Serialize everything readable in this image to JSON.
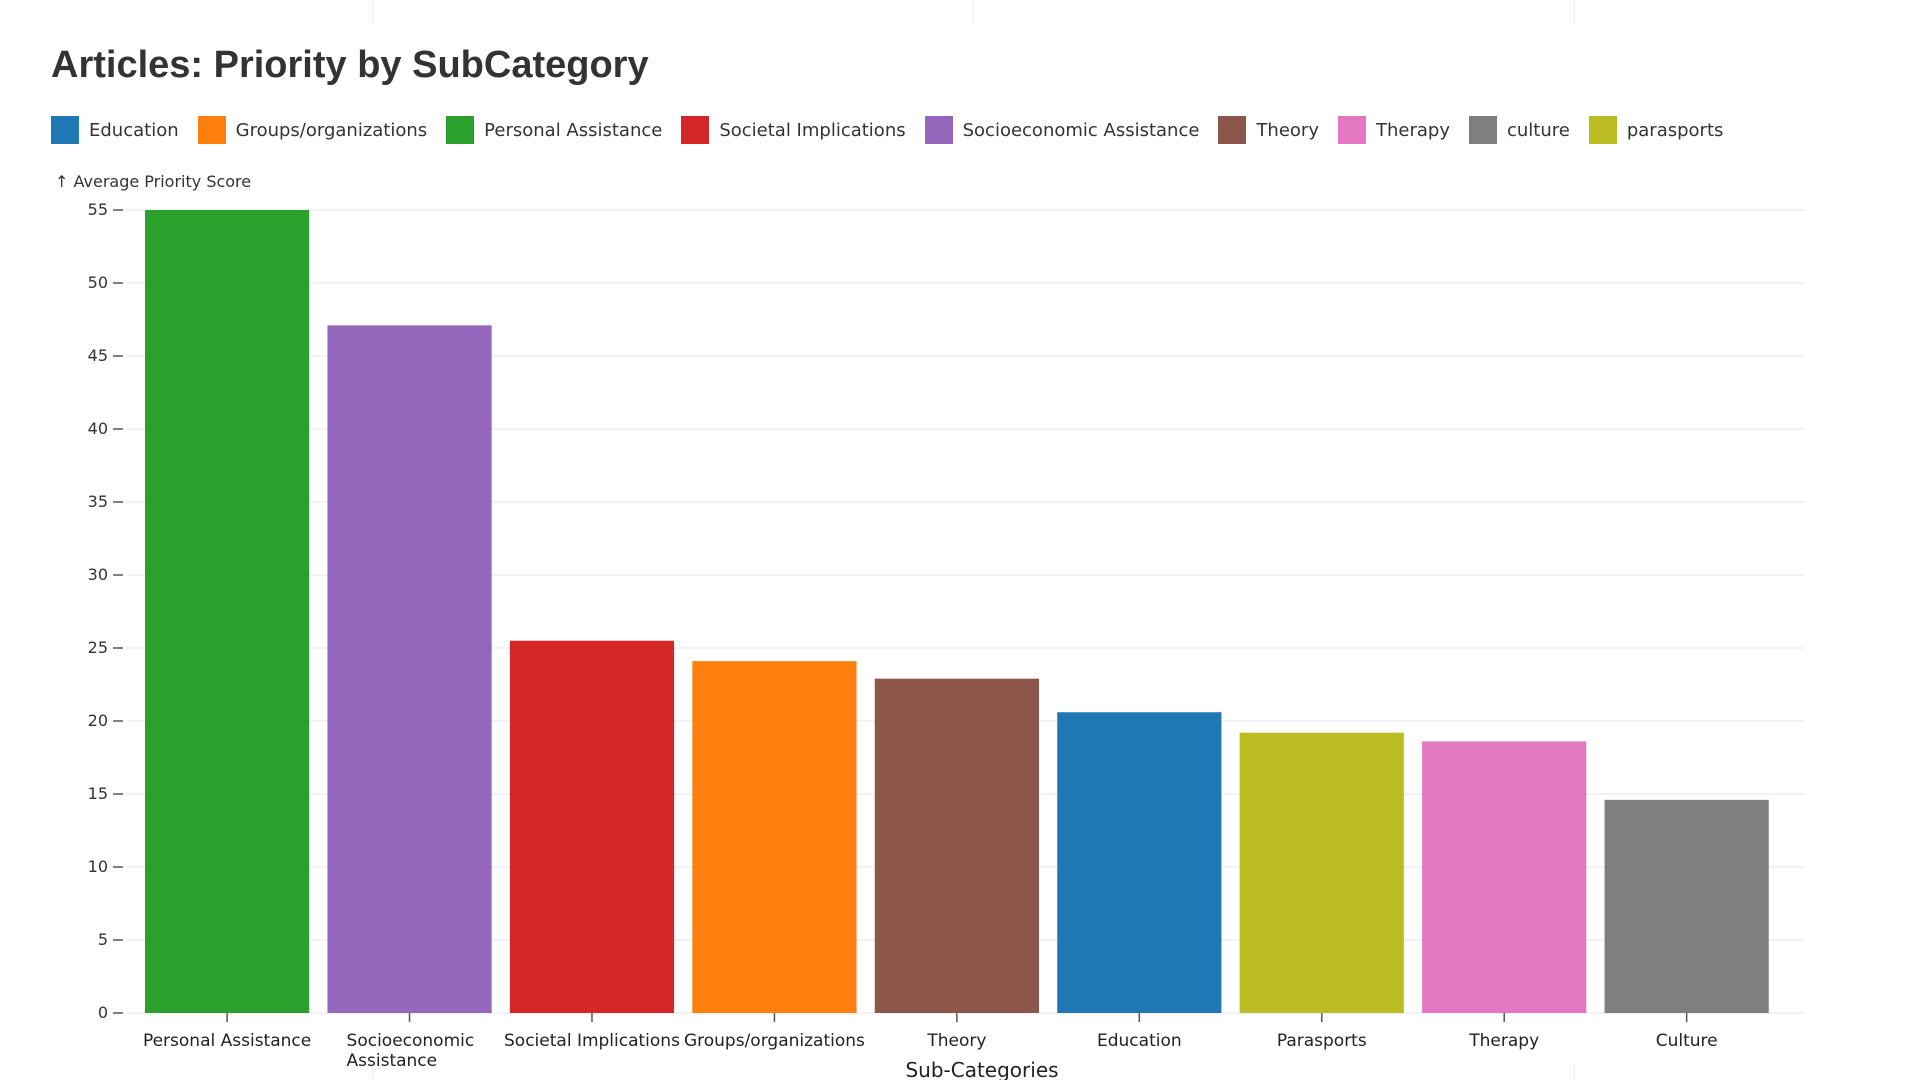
{
  "chart_data": {
    "type": "bar",
    "title": "Articles: Priority by SubCategory",
    "ylabel": "↑ Average Priority Score",
    "xlabel": "Sub-Categories",
    "ylim": [
      0,
      55
    ],
    "yticks": [
      0,
      5,
      10,
      15,
      20,
      25,
      30,
      35,
      40,
      45,
      50,
      55
    ],
    "grid": true,
    "legend_position": "top-left",
    "legend": [
      {
        "label": "Education",
        "color": "#1f77b4"
      },
      {
        "label": "Groups/organizations",
        "color": "#ff7f0e"
      },
      {
        "label": "Personal Assistance",
        "color": "#2ca02c"
      },
      {
        "label": "Societal Implications",
        "color": "#d62728"
      },
      {
        "label": "Socioeconomic Assistance",
        "color": "#9467bd"
      },
      {
        "label": "Theory",
        "color": "#8c564b"
      },
      {
        "label": "Therapy",
        "color": "#e377c2"
      },
      {
        "label": "culture",
        "color": "#7f7f7f"
      },
      {
        "label": "parasports",
        "color": "#bcbd22"
      }
    ],
    "categories": [
      [
        "Personal Assistance"
      ],
      [
        "Socioeconomic",
        "Assistance"
      ],
      [
        "Societal Implications"
      ],
      [
        "Groups/organizations"
      ],
      [
        "Theory"
      ],
      [
        "Education"
      ],
      [
        "Parasports"
      ],
      [
        "Therapy"
      ],
      [
        "Culture"
      ]
    ],
    "values": [
      55.0,
      47.1,
      25.5,
      24.1,
      22.9,
      20.6,
      19.2,
      18.6,
      14.6
    ],
    "colors": [
      "#2ca02c",
      "#9467bd",
      "#d62728",
      "#ff7f0e",
      "#8c564b",
      "#1f77b4",
      "#bcbd22",
      "#e377c2",
      "#7f7f7f"
    ]
  }
}
